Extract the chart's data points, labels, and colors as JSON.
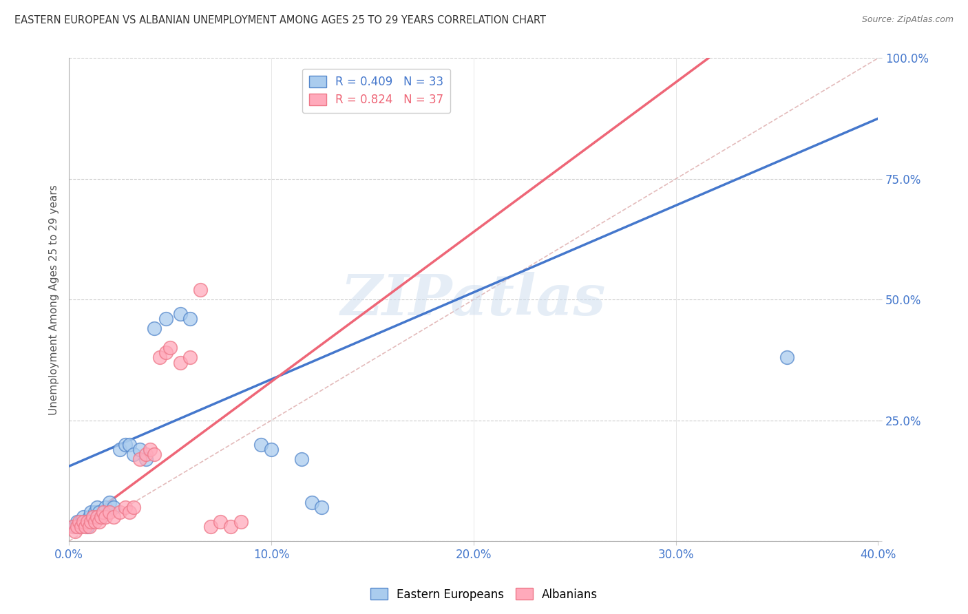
{
  "title": "EASTERN EUROPEAN VS ALBANIAN UNEMPLOYMENT AMONG AGES 25 TO 29 YEARS CORRELATION CHART",
  "source": "Source: ZipAtlas.com",
  "ylabel": "Unemployment Among Ages 25 to 29 years",
  "xlim": [
    0.0,
    0.4
  ],
  "ylim": [
    0.0,
    1.0
  ],
  "xticks": [
    0.0,
    0.1,
    0.2,
    0.3,
    0.4
  ],
  "yticks": [
    0.0,
    0.25,
    0.5,
    0.75,
    1.0
  ],
  "xticklabels": [
    "0.0%",
    "10.0%",
    "20.0%",
    "30.0%",
    "40.0%"
  ],
  "yticklabels": [
    "",
    "25.0%",
    "50.0%",
    "75.0%",
    "100.0%"
  ],
  "legend_r1": "R = 0.409",
  "legend_n1": "N = 33",
  "legend_r2": "R = 0.824",
  "legend_n2": "N = 37",
  "color_blue_fill": "#aaccee",
  "color_pink_fill": "#ffaabb",
  "color_blue_edge": "#5588cc",
  "color_pink_edge": "#ee7788",
  "color_blue_line": "#4477cc",
  "color_pink_line": "#ee6677",
  "color_diag": "#ddaaaa",
  "watermark": "ZIPatlas",
  "blue_line_intercept": 0.155,
  "blue_line_slope": 1.8,
  "pink_line_intercept": 0.02,
  "pink_line_slope": 3.1,
  "blue_scatter_x": [
    0.003,
    0.004,
    0.005,
    0.006,
    0.007,
    0.008,
    0.009,
    0.01,
    0.011,
    0.012,
    0.013,
    0.014,
    0.015,
    0.016,
    0.018,
    0.02,
    0.022,
    0.025,
    0.028,
    0.03,
    0.032,
    0.035,
    0.038,
    0.042,
    0.048,
    0.055,
    0.06,
    0.095,
    0.1,
    0.115,
    0.12,
    0.125,
    0.355
  ],
  "blue_scatter_y": [
    0.03,
    0.04,
    0.03,
    0.04,
    0.05,
    0.04,
    0.03,
    0.05,
    0.06,
    0.05,
    0.06,
    0.07,
    0.06,
    0.05,
    0.07,
    0.08,
    0.07,
    0.19,
    0.2,
    0.2,
    0.18,
    0.19,
    0.17,
    0.44,
    0.46,
    0.47,
    0.46,
    0.2,
    0.19,
    0.17,
    0.08,
    0.07,
    0.38
  ],
  "pink_scatter_x": [
    0.002,
    0.003,
    0.004,
    0.005,
    0.006,
    0.007,
    0.008,
    0.009,
    0.01,
    0.011,
    0.012,
    0.013,
    0.014,
    0.015,
    0.016,
    0.017,
    0.018,
    0.02,
    0.022,
    0.025,
    0.028,
    0.03,
    0.032,
    0.035,
    0.038,
    0.04,
    0.042,
    0.045,
    0.048,
    0.05,
    0.055,
    0.06,
    0.065,
    0.07,
    0.075,
    0.08,
    0.085
  ],
  "pink_scatter_y": [
    0.03,
    0.02,
    0.03,
    0.04,
    0.03,
    0.04,
    0.03,
    0.04,
    0.03,
    0.04,
    0.05,
    0.04,
    0.05,
    0.04,
    0.05,
    0.06,
    0.05,
    0.06,
    0.05,
    0.06,
    0.07,
    0.06,
    0.07,
    0.17,
    0.18,
    0.19,
    0.18,
    0.38,
    0.39,
    0.4,
    0.37,
    0.38,
    0.52,
    0.03,
    0.04,
    0.03,
    0.04
  ]
}
